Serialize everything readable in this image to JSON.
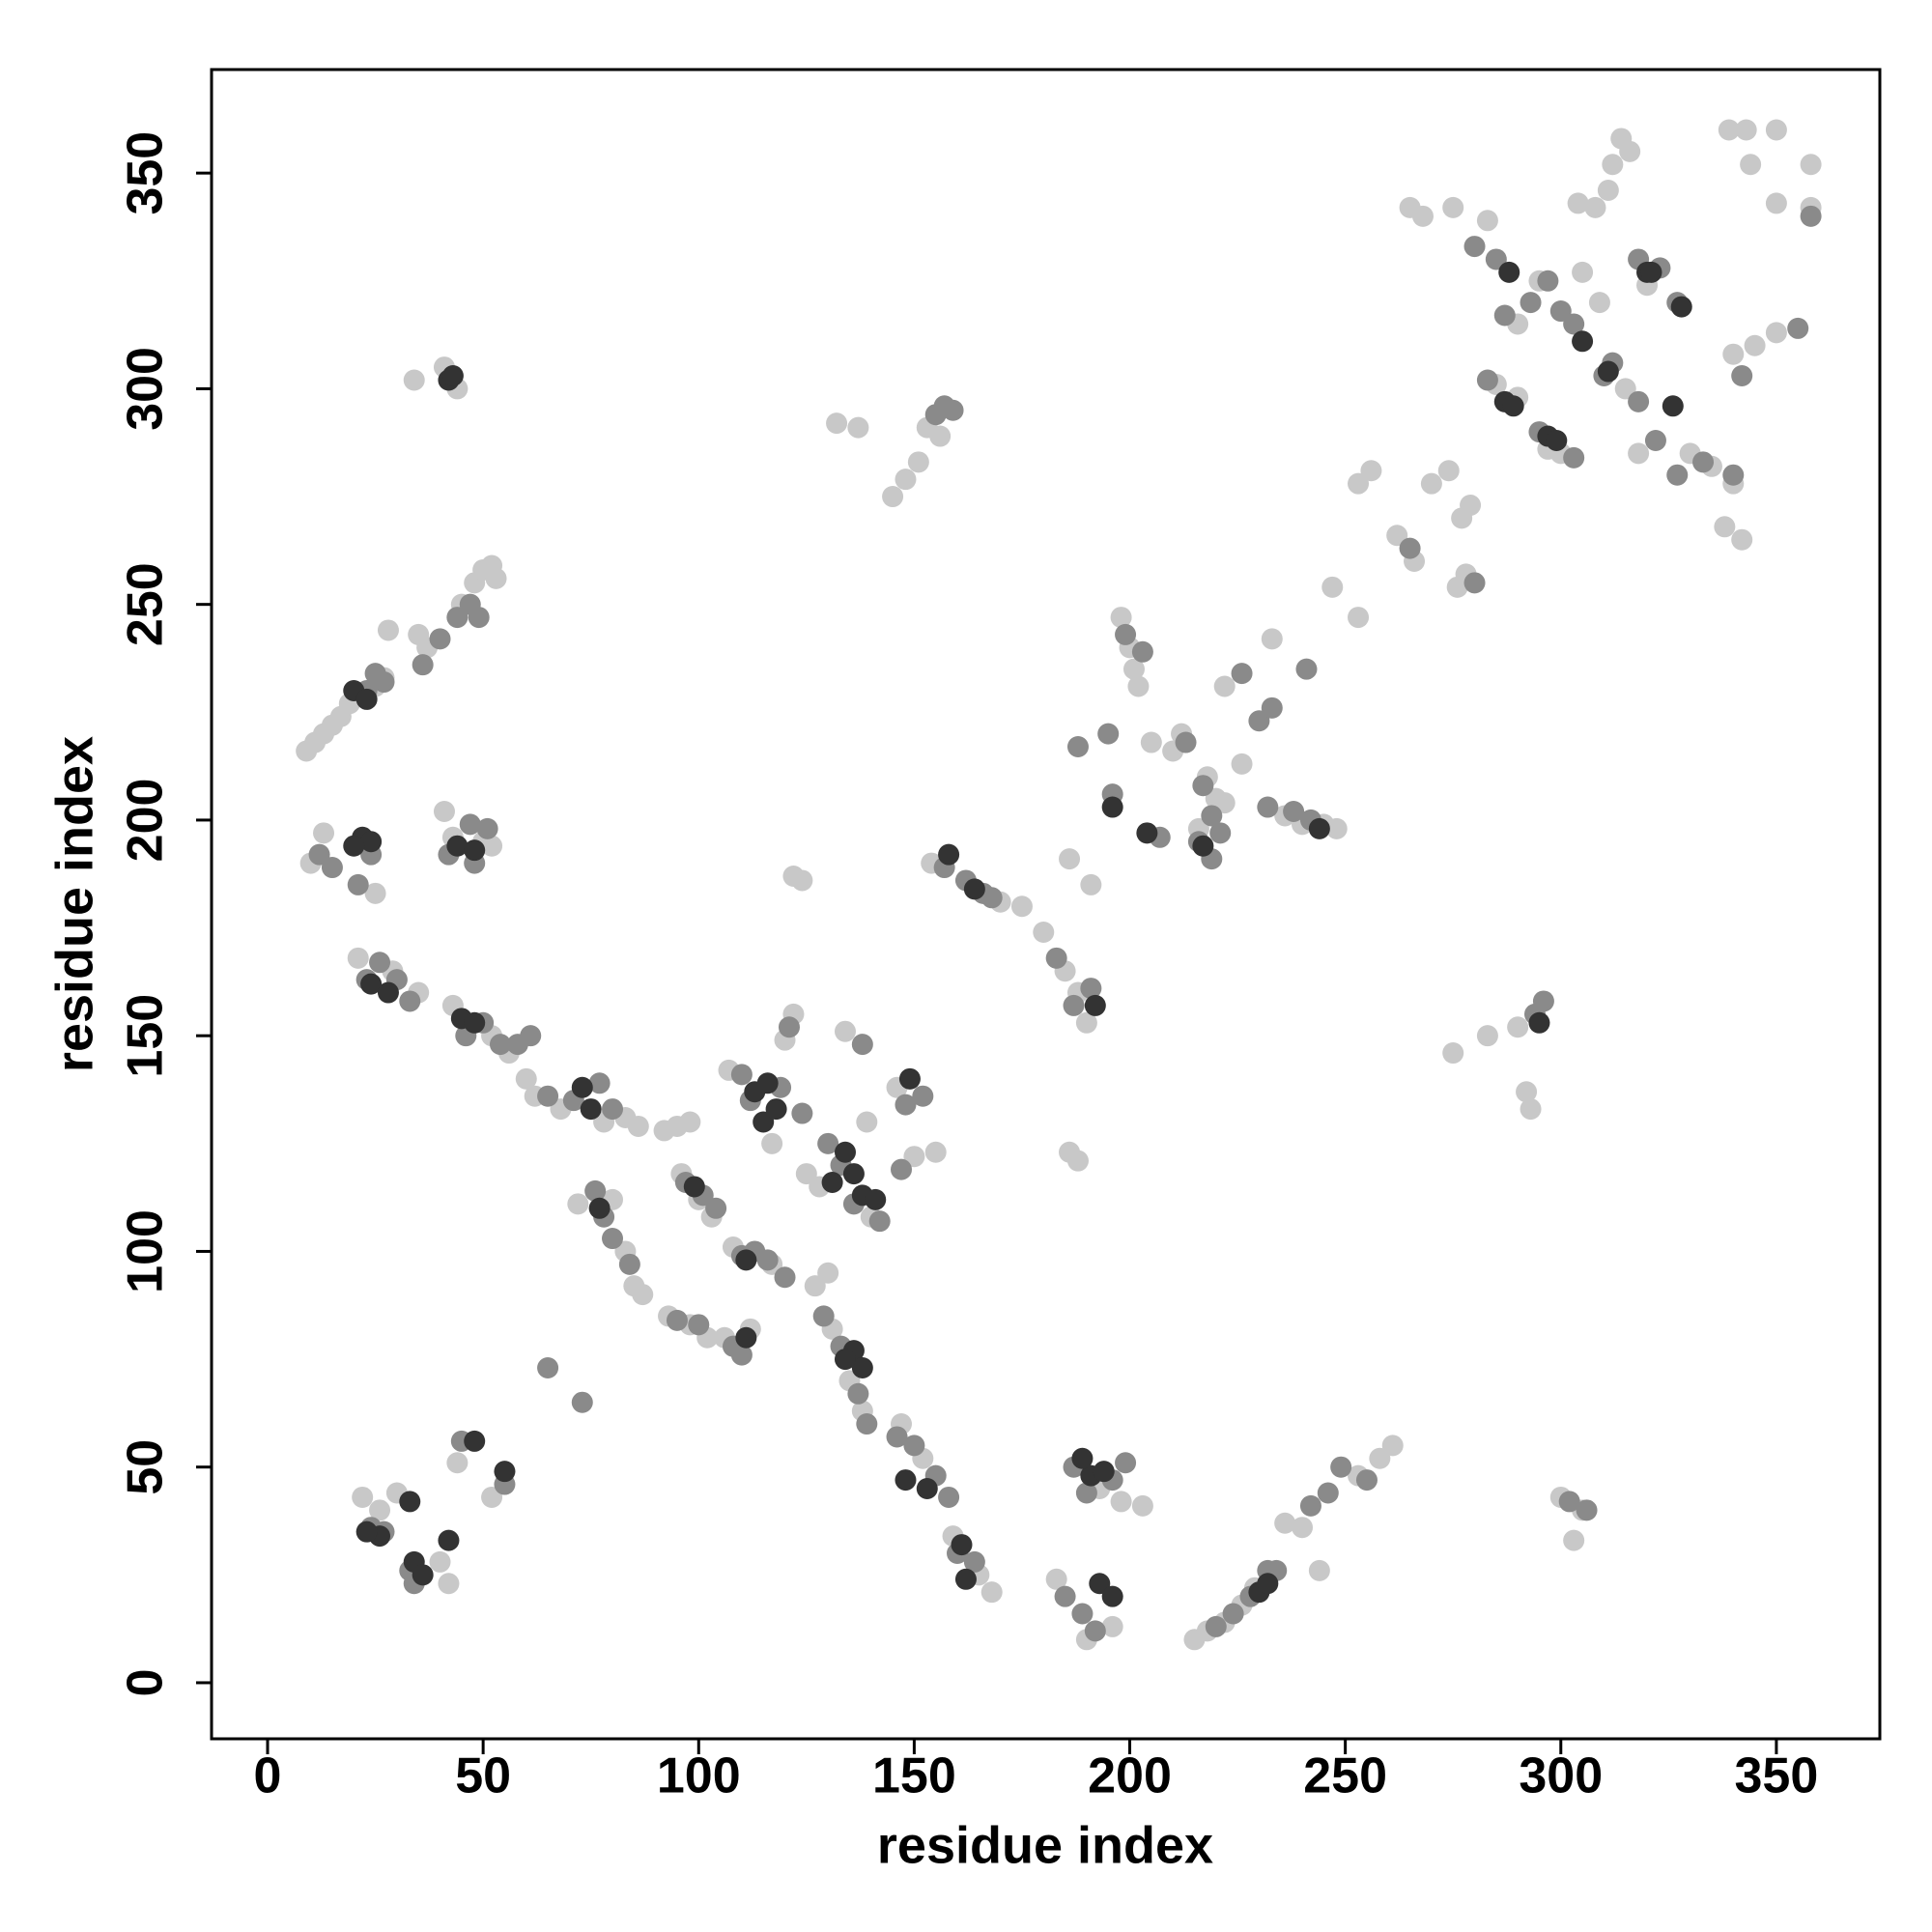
{
  "chart_data": {
    "type": "scatter",
    "xlabel": "residue index",
    "ylabel": "residue index",
    "xlim": [
      -13,
      374
    ],
    "ylim": [
      -13,
      374
    ],
    "xticks": [
      0,
      50,
      100,
      150,
      200,
      250,
      300,
      350
    ],
    "yticks": [
      0,
      50,
      100,
      150,
      200,
      250,
      300,
      350
    ],
    "grid": false,
    "series": [
      {
        "color": "#c8c8c8",
        "x": [
          9,
          11,
          13,
          15,
          17,
          19,
          21,
          25,
          27,
          28,
          35,
          37,
          45,
          48,
          50,
          52,
          53,
          34,
          41,
          44,
          10,
          13,
          25,
          41,
          43,
          50,
          52,
          21,
          29,
          35,
          43,
          52,
          56,
          60,
          62,
          68,
          78,
          83,
          86,
          92,
          95,
          98,
          72,
          80,
          83,
          85,
          87,
          96,
          100,
          103,
          93,
          98,
          102,
          106,
          112,
          108,
          117,
          107,
          117,
          120,
          122,
          125,
          128,
          134,
          140,
          139,
          146,
          150,
          155,
          127,
          130,
          131,
          135,
          138,
          147,
          152,
          159,
          165,
          168,
          183,
          190,
          196,
          198,
          203,
          193,
          215,
          218,
          222,
          226,
          229,
          236,
          240,
          244,
          253,
          258,
          261,
          300,
          303,
          305,
          275,
          283,
          290,
          292,
          293,
          154,
          170,
          175,
          180,
          185,
          188,
          190,
          186,
          188,
          186,
          191,
          132,
          137,
          145,
          148,
          151,
          153,
          156,
          122,
          124,
          198,
          200,
          201,
          202,
          205,
          210,
          212,
          222,
          226,
          218,
          220,
          216,
          222,
          233,
          247,
          253,
          236,
          240,
          245,
          248,
          253,
          256,
          262,
          266,
          270,
          274,
          277,
          279,
          278,
          276,
          265,
          268,
          275,
          283,
          290,
          295,
          285,
          290,
          297,
          300,
          305,
          309,
          315,
          304,
          308,
          311,
          312,
          314,
          316,
          318,
          330,
          335,
          340,
          338,
          342,
          320,
          339,
          343,
          350,
          344,
          358,
          350,
          358,
          350,
          345,
          340,
          22,
          26,
          30,
          42,
          40,
          44,
          52
        ],
        "y": [
          216,
          218,
          220,
          222,
          224,
          227,
          229,
          231,
          233,
          244,
          243,
          240,
          250,
          255,
          258,
          259,
          256,
          302,
          305,
          300,
          190,
          197,
          183,
          202,
          196,
          195,
          194,
          168,
          165,
          160,
          157,
          150,
          146,
          140,
          136,
          133,
          130,
          131,
          129,
          128,
          129,
          130,
          111,
          112,
          100,
          92,
          90,
          118,
          112,
          108,
          85,
          83,
          80,
          80,
          82,
          101,
          97,
          142,
          125,
          149,
          155,
          118,
          115,
          151,
          108,
          130,
          138,
          122,
          123,
          92,
          95,
          82,
          70,
          63,
          60,
          52,
          34,
          25,
          21,
          24,
          10,
          13,
          42,
          41,
          45,
          10,
          12,
          14,
          18,
          22,
          37,
          36,
          26,
          48,
          52,
          55,
          43,
          33,
          40,
          146,
          150,
          152,
          137,
          133,
          190,
          181,
          180,
          174,
          165,
          160,
          153,
          123,
          121,
          191,
          185,
          292,
          291,
          275,
          279,
          283,
          291,
          289,
          187,
          186,
          247,
          240,
          235,
          231,
          218,
          216,
          220,
          204,
          213,
          210,
          205,
          198,
          231,
          242,
          254,
          247,
          201,
          199,
          199,
          198,
          278,
          281,
          266,
          260,
          278,
          281,
          270,
          273,
          257,
          254,
          342,
          340,
          342,
          339,
          315,
          325,
          301,
          298,
          286,
          285,
          327,
          320,
          300,
          343,
          342,
          346,
          352,
          358,
          355,
          285,
          285,
          282,
          278,
          268,
          265,
          324,
          360,
          360,
          360,
          352,
          352,
          343,
          342,
          313,
          310,
          308,
          43,
          40,
          44,
          23,
          28,
          51,
          43
        ]
      },
      {
        "color": "#8a8a8a",
        "x": [
          23,
          25,
          27,
          36,
          40,
          44,
          47,
          49,
          12,
          15,
          21,
          24,
          42,
          47,
          48,
          51,
          23,
          26,
          30,
          33,
          46,
          50,
          54,
          58,
          61,
          65,
          71,
          77,
          80,
          76,
          78,
          80,
          84,
          97,
          101,
          104,
          95,
          100,
          108,
          110,
          110,
          113,
          116,
          120,
          110,
          112,
          119,
          124,
          121,
          130,
          133,
          136,
          142,
          138,
          148,
          152,
          147,
          129,
          133,
          137,
          139,
          146,
          150,
          155,
          158,
          160,
          164,
          185,
          189,
          192,
          187,
          190,
          196,
          199,
          220,
          224,
          228,
          232,
          234,
          242,
          246,
          249,
          255,
          306,
          302,
          294,
          296,
          157,
          162,
          166,
          168,
          183,
          187,
          191,
          155,
          157,
          159,
          196,
          199,
          203,
          213,
          207,
          217,
          219,
          188,
          195,
          216,
          219,
          221,
          226,
          230,
          233,
          241,
          232,
          238,
          242,
          265,
          280,
          280,
          285,
          287,
          293,
          283,
          295,
          303,
          297,
          300,
          303,
          310,
          312,
          318,
          322,
          327,
          333,
          340,
          318,
          323,
          327,
          342,
          358,
          355,
          27,
          24,
          34,
          33,
          45,
          55,
          65,
          73
        ],
        "y": [
          230,
          234,
          232,
          236,
          242,
          247,
          250,
          247,
          192,
          189,
          185,
          192,
          192,
          199,
          190,
          198,
          163,
          167,
          163,
          158,
          150,
          153,
          148,
          148,
          150,
          136,
          135,
          139,
          133,
          114,
          108,
          103,
          97,
          116,
          113,
          110,
          84,
          83,
          78,
          76,
          99,
          100,
          98,
          94,
          141,
          135,
          138,
          132,
          152,
          125,
          120,
          111,
          107,
          148,
          134,
          136,
          119,
          85,
          78,
          67,
          60,
          57,
          55,
          48,
          43,
          30,
          28,
          20,
          16,
          12,
          50,
          44,
          47,
          51,
          13,
          16,
          20,
          26,
          26,
          41,
          44,
          50,
          47,
          40,
          42,
          155,
          158,
          189,
          186,
          183,
          182,
          168,
          157,
          161,
          294,
          296,
          295,
          206,
          243,
          239,
          218,
          196,
          208,
          201,
          217,
          220,
          195,
          191,
          197,
          234,
          223,
          226,
          235,
          203,
          202,
          200,
          263,
          255,
          333,
          330,
          317,
          320,
          302,
          290,
          284,
          325,
          318,
          315,
          303,
          306,
          297,
          288,
          280,
          283,
          280,
          330,
          328,
          320,
          303,
          340,
          314,
          35,
          36,
          23,
          26,
          56,
          46,
          73,
          65
        ]
      },
      {
        "color": "#333333",
        "x": [
          20,
          23,
          42,
          43,
          22,
          24,
          20,
          44,
          48,
          24,
          28,
          45,
          48,
          73,
          75,
          77,
          99,
          111,
          111,
          113,
          116,
          115,
          118,
          131,
          136,
          138,
          134,
          141,
          149,
          136,
          138,
          134,
          148,
          153,
          161,
          162,
          193,
          196,
          191,
          194,
          189,
          230,
          232,
          295,
          158,
          164,
          192,
          196,
          204,
          217,
          244,
          288,
          287,
          289,
          297,
          299,
          305,
          311,
          320,
          326,
          321,
          328,
          26,
          33,
          34,
          36,
          23,
          48,
          55,
          42
        ],
        "y": [
          230,
          228,
          302,
          303,
          196,
          195,
          194,
          194,
          193,
          162,
          160,
          154,
          153,
          138,
          133,
          110,
          115,
          80,
          98,
          137,
          139,
          130,
          133,
          116,
          118,
          113,
          123,
          112,
          140,
          77,
          73,
          75,
          47,
          45,
          32,
          24,
          23,
          20,
          48,
          49,
          52,
          21,
          23,
          153,
          192,
          184,
          157,
          203,
          197,
          194,
          198,
          327,
          297,
          296,
          289,
          288,
          311,
          304,
          327,
          296,
          327,
          319,
          34,
          42,
          28,
          25,
          35,
          56,
          49,
          33
        ]
      }
    ]
  }
}
